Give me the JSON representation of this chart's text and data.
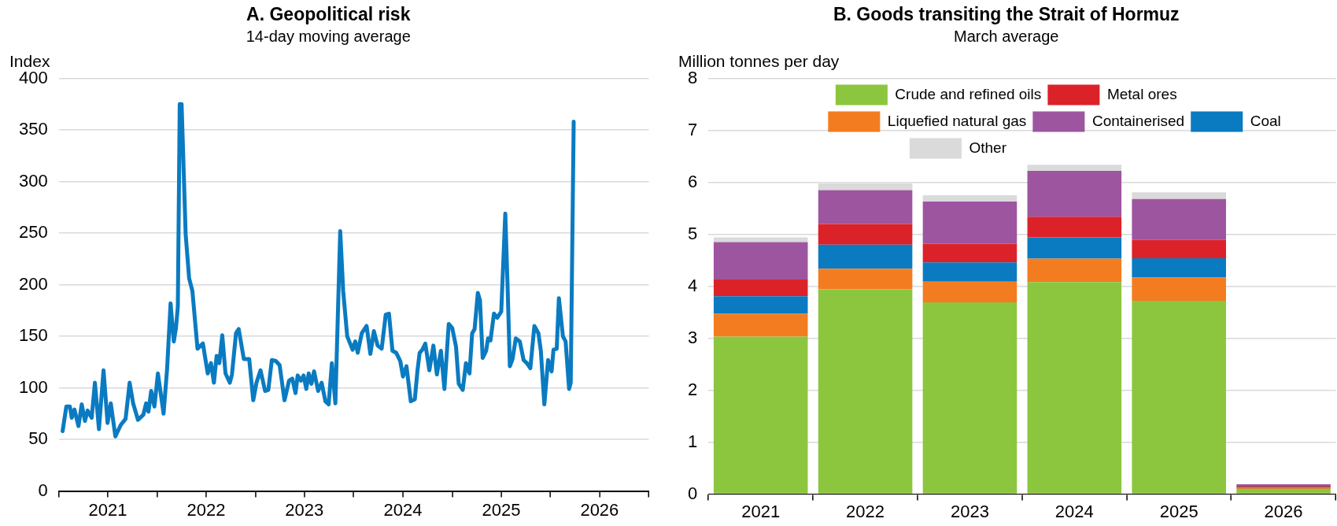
{
  "chart_data": [
    {
      "type": "line",
      "title": "A. Geopolitical risk",
      "subtitle": "14-day moving average",
      "ylabel": "Index",
      "xlim": [
        "2021-01-01",
        "2027-01-01"
      ],
      "xticks": [
        {
          "value": "2021-01-01",
          "label": null
        },
        {
          "value": "2021-07-02",
          "label": "2021"
        },
        {
          "value": "2022-01-01",
          "label": null
        },
        {
          "value": "2022-07-02",
          "label": "2022"
        },
        {
          "value": "2023-01-01",
          "label": null
        },
        {
          "value": "2023-07-02",
          "label": "2023"
        },
        {
          "value": "2024-01-01",
          "label": null
        },
        {
          "value": "2024-07-02",
          "label": "2024"
        },
        {
          "value": "2025-01-01",
          "label": null
        },
        {
          "value": "2025-07-02",
          "label": "2025"
        },
        {
          "value": "2026-01-01",
          "label": null
        },
        {
          "value": "2026-07-02",
          "label": "2026"
        },
        {
          "value": "2027-01-01",
          "label": null
        }
      ],
      "ylim": [
        0,
        400
      ],
      "yticks": [
        0,
        50,
        100,
        150,
        200,
        250,
        300,
        350,
        400
      ],
      "grid": "y",
      "marker": "none",
      "line_style": "solid",
      "series": [
        {
          "color": "#0a7bc1",
          "x": [
            "2021-01-15",
            "2021-01-29",
            "2021-02-11",
            "2021-02-18",
            "2021-02-28",
            "2021-03-15",
            "2021-03-27",
            "2021-04-08",
            "2021-04-18",
            "2021-05-03",
            "2021-05-15",
            "2021-05-30",
            "2021-06-16",
            "2021-07-01",
            "2021-07-13",
            "2021-07-30",
            "2021-08-19",
            "2021-09-06",
            "2021-09-21",
            "2021-10-04",
            "2021-10-22",
            "2021-11-11",
            "2021-11-21",
            "2021-11-30",
            "2021-12-10",
            "2021-12-22",
            "2022-01-04",
            "2022-01-25",
            "2022-02-07",
            "2022-02-20",
            "2022-03-04",
            "2022-03-12",
            "2022-03-19",
            "2022-03-26",
            "2022-04-02",
            "2022-04-17",
            "2022-04-30",
            "2022-05-12",
            "2022-05-31",
            "2022-06-20",
            "2022-07-08",
            "2022-07-20",
            "2022-07-31",
            "2022-08-10",
            "2022-08-20",
            "2022-08-31",
            "2022-09-12",
            "2022-09-28",
            "2022-10-06",
            "2022-10-21",
            "2022-10-31",
            "2022-11-19",
            "2022-12-09",
            "2022-12-24",
            "2023-01-05",
            "2023-01-20",
            "2023-02-06",
            "2023-02-18",
            "2023-03-03",
            "2023-03-18",
            "2023-04-01",
            "2023-04-19",
            "2023-05-06",
            "2023-05-18",
            "2023-05-30",
            "2023-06-07",
            "2023-06-19",
            "2023-06-29",
            "2023-07-09",
            "2023-07-18",
            "2023-07-28",
            "2023-08-07",
            "2023-08-22",
            "2023-09-04",
            "2023-09-18",
            "2023-09-30",
            "2023-10-12",
            "2023-10-25",
            "2023-11-12",
            "2023-11-23",
            "2023-12-08",
            "2023-12-28",
            "2024-01-07",
            "2024-01-16",
            "2024-01-31",
            "2024-02-18",
            "2024-03-03",
            "2024-03-16",
            "2024-03-30",
            "2024-04-14",
            "2024-04-29",
            "2024-05-11",
            "2024-05-24",
            "2024-06-07",
            "2024-06-22",
            "2024-07-02",
            "2024-07-15",
            "2024-07-31",
            "2024-08-15",
            "2024-08-25",
            "2024-09-02",
            "2024-09-12",
            "2024-09-23",
            "2024-10-08",
            "2024-10-23",
            "2024-11-05",
            "2024-11-20",
            "2024-12-03",
            "2024-12-19",
            "2025-01-01",
            "2025-01-15",
            "2025-01-25",
            "2025-02-09",
            "2025-02-21",
            "2025-03-06",
            "2025-03-16",
            "2025-03-25",
            "2025-04-06",
            "2025-04-14",
            "2025-04-24",
            "2025-05-07",
            "2025-05-14",
            "2025-05-23",
            "2025-06-05",
            "2025-06-17",
            "2025-07-02",
            "2025-07-17",
            "2025-07-26",
            "2025-08-03",
            "2025-08-13",
            "2025-08-25",
            "2025-09-09",
            "2025-09-23",
            "2025-10-05",
            "2025-10-18",
            "2025-11-02",
            "2025-11-17",
            "2025-11-26",
            "2025-12-09",
            "2025-12-23",
            "2026-01-05",
            "2026-01-12",
            "2026-01-24",
            "2026-02-01",
            "2026-02-16",
            "2026-02-26",
            "2026-03-11",
            "2026-03-17",
            "2026-03-28"
          ],
          "values": [
            58,
            82,
            82,
            71,
            79,
            63,
            84,
            68,
            78,
            71,
            105,
            60,
            117,
            66,
            85,
            53,
            64,
            70,
            105,
            85,
            69,
            74,
            85,
            77,
            97,
            82,
            114,
            75,
            118,
            182,
            145,
            158,
            179,
            375,
            375,
            249,
            206,
            194,
            138,
            143,
            114,
            124,
            105,
            131,
            124,
            151,
            114,
            105,
            113,
            153,
            157,
            128,
            128,
            88,
            105,
            117,
            97,
            98,
            127,
            126,
            122,
            88,
            107,
            109,
            95,
            112,
            107,
            112,
            99,
            114,
            104,
            116,
            97,
            105,
            87,
            84,
            124,
            85,
            252,
            194,
            150,
            137,
            145,
            134,
            153,
            160,
            133,
            155,
            141,
            138,
            171,
            172,
            136,
            134,
            126,
            111,
            121,
            87,
            89,
            117,
            134,
            137,
            143,
            117,
            141,
            113,
            136,
            99,
            162,
            158,
            140,
            104,
            98,
            124,
            114,
            153,
            157,
            192,
            185,
            129,
            136,
            148,
            146,
            172,
            168,
            174,
            269,
            194,
            121,
            128,
            148,
            145,
            127,
            124,
            119,
            160,
            153,
            136,
            84,
            127,
            116,
            137,
            138,
            187,
            150,
            145,
            99,
            105,
            358
          ]
        }
      ]
    },
    {
      "type": "bar",
      "title": "B. Goods transiting the Strait of Hormuz",
      "subtitle": "March average",
      "ylabel": "Million tonnes per day",
      "categories": [
        "2021",
        "2022",
        "2023",
        "2024",
        "2025",
        "2026"
      ],
      "stacked": true,
      "ylim": [
        0,
        8
      ],
      "yticks": [
        0,
        1,
        2,
        3,
        4,
        5,
        6,
        7,
        8
      ],
      "grid": "y",
      "legend": "top",
      "series": [
        {
          "name": "Crude and refined oils",
          "color": "#8cc63f",
          "values": [
            3.03,
            3.94,
            3.69,
            4.08,
            3.72,
            0.1
          ]
        },
        {
          "name": "Liquefied natural gas",
          "color": "#f47c20",
          "values": [
            0.44,
            0.4,
            0.4,
            0.45,
            0.45,
            0.02
          ]
        },
        {
          "name": "Coal",
          "color": "#0a7bc1",
          "values": [
            0.34,
            0.46,
            0.37,
            0.41,
            0.37,
            0.02
          ]
        },
        {
          "name": "Metal ores",
          "color": "#dc2229",
          "values": [
            0.32,
            0.4,
            0.36,
            0.4,
            0.35,
            0.02
          ]
        },
        {
          "name": "Containerised",
          "color": "#9e55a0",
          "values": [
            0.72,
            0.65,
            0.81,
            0.88,
            0.79,
            0.03
          ]
        },
        {
          "name": "Other",
          "color": "#dadada",
          "values": [
            0.09,
            0.13,
            0.12,
            0.12,
            0.13,
            null
          ]
        }
      ]
    }
  ]
}
